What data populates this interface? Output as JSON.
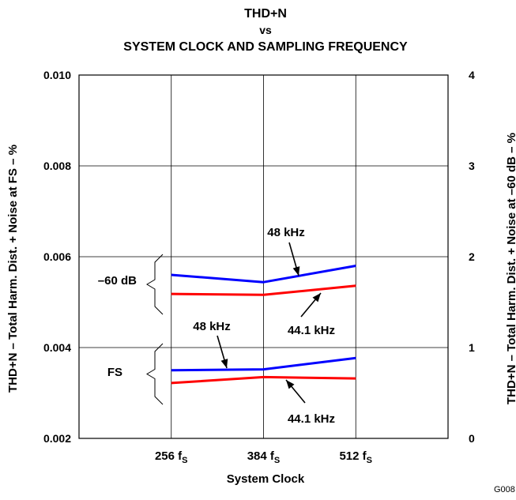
{
  "chart_data": {
    "type": "line",
    "title_lines": [
      "THD+N",
      "vs",
      "SYSTEM CLOCK AND SAMPLING FREQUENCY"
    ],
    "xlabel": "System Clock",
    "ylabel_left": "THD+N – Total Harm. Dist. + Noise at FS – %",
    "ylabel_right": "THD+N – Total Harm. Dist. + Noise at –60 dB – %",
    "x_ticks": [
      {
        "value": 256,
        "base": "256 f",
        "sub": "S"
      },
      {
        "value": 384,
        "base": "384 f",
        "sub": "S"
      },
      {
        "value": 512,
        "base": "512 f",
        "sub": "S"
      }
    ],
    "xlim": [
      128,
      640
    ],
    "ylim_left": [
      0.002,
      0.01
    ],
    "yticks_left": [
      "0.002",
      "0.004",
      "0.006",
      "0.008",
      "0.010"
    ],
    "ylim_right": [
      0,
      4
    ],
    "yticks_right": [
      "0",
      "1",
      "2",
      "3",
      "4"
    ],
    "grid": true,
    "series": [
      {
        "group": "–60 dB",
        "name": "48 kHz",
        "color": "#0000ff",
        "axis": "right",
        "x": [
          256,
          384,
          512
        ],
        "y": [
          1.8,
          1.72,
          1.9
        ]
      },
      {
        "group": "–60 dB",
        "name": "44.1 kHz",
        "color": "#ff0000",
        "axis": "right",
        "x": [
          256,
          384,
          512
        ],
        "y": [
          1.59,
          1.58,
          1.68
        ]
      },
      {
        "group": "FS",
        "name": "48 kHz",
        "color": "#0000ff",
        "axis": "left",
        "x": [
          256,
          384,
          512
        ],
        "y": [
          0.0035,
          0.00352,
          0.00377
        ]
      },
      {
        "group": "FS",
        "name": "44.1 kHz",
        "color": "#ff0000",
        "axis": "left",
        "x": [
          256,
          384,
          512
        ],
        "y": [
          0.00322,
          0.00335,
          0.00332
        ]
      }
    ],
    "annotations": {
      "minus60_48": "48 kHz",
      "minus60_44": "44.1 kHz",
      "fs_48": "48 kHz",
      "fs_44": "44.1 kHz",
      "group_minus60": "–60 dB",
      "group_fs": "FS"
    },
    "figure_id": "G008"
  }
}
